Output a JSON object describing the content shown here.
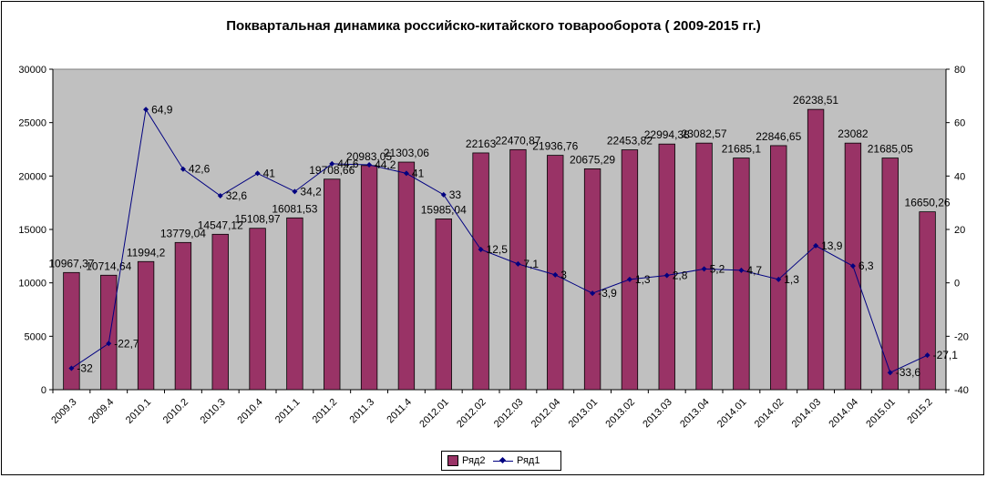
{
  "chart_data": {
    "type": "bar",
    "title": "Поквартальная динамика российско-китайского товарооборота  ( 2009-2015 гг.)",
    "categories": [
      "2009.3",
      "2009.4",
      "2010.1",
      "2010.2",
      "2010.3",
      "2010.4",
      "2011.1",
      "2011.2",
      "2011.3",
      "2011.4",
      "2012.01",
      "2012.02",
      "2012.03",
      "2012.04",
      "2013.01",
      "2013.02",
      "2013.03",
      "2013.04",
      "2014.01",
      "2014.02",
      "2014.03",
      "2014.04",
      "2015.01",
      "2015.2"
    ],
    "series": [
      {
        "name": "Ряд2",
        "type": "bar",
        "axis": "left",
        "color": "#993366",
        "values": [
          10967.37,
          10714.64,
          11994.2,
          13779.04,
          14547.12,
          15108.97,
          16081.53,
          19708.66,
          20983.05,
          21303.06,
          15985.04,
          22163,
          22470.87,
          21936.76,
          20675.29,
          22453.82,
          22994.38,
          23082.57,
          21685.1,
          22846.65,
          26238.51,
          23082,
          21685.05,
          16650.26
        ],
        "labels": [
          "10967,37",
          "10714,64",
          "11994,2",
          "13779,04",
          "14547,12",
          "15108,97",
          "16081,53",
          "19708,66",
          "20983,05",
          "21303,06",
          "15985,04",
          "22163",
          "22470,87",
          "21936,76",
          "20675,29",
          "22453,82",
          "22994,38",
          "23082,57",
          "21685,1",
          "22846,65",
          "26238,51",
          "23082",
          "21685,05",
          "16650,26"
        ]
      },
      {
        "name": "Ряд1",
        "type": "line",
        "axis": "right",
        "color": "#000080",
        "values": [
          -32,
          -22.7,
          64.9,
          42.6,
          32.6,
          41,
          34.2,
          44.6,
          44.2,
          41,
          33,
          12.5,
          7.1,
          3,
          -3.9,
          1.3,
          2.8,
          5.2,
          4.7,
          1.3,
          13.9,
          6.3,
          -33.6,
          -27.1
        ],
        "labels": [
          "-32",
          "-22,7",
          "64,9",
          "42,6",
          "32,6",
          "41",
          "34,2",
          "44,6",
          "44,2",
          "41",
          "33",
          "12,5",
          "7,1",
          "3",
          "-3,9",
          "1,3",
          "2,8",
          "5,2",
          "4,7",
          "1,3",
          "13,9",
          "6,3",
          "-33,6",
          "-27,1"
        ]
      }
    ],
    "y_left": {
      "min": 0,
      "max": 30000,
      "ticks": [
        "0",
        "5000",
        "10000",
        "15000",
        "20000",
        "25000",
        "30000"
      ]
    },
    "y_right": {
      "min": -40,
      "max": 80,
      "ticks": [
        "-40",
        "-20",
        "0",
        "20",
        "40",
        "60",
        "80"
      ]
    },
    "plot_background": "#c0c0c0",
    "grid": false,
    "legend_position": "bottom"
  }
}
